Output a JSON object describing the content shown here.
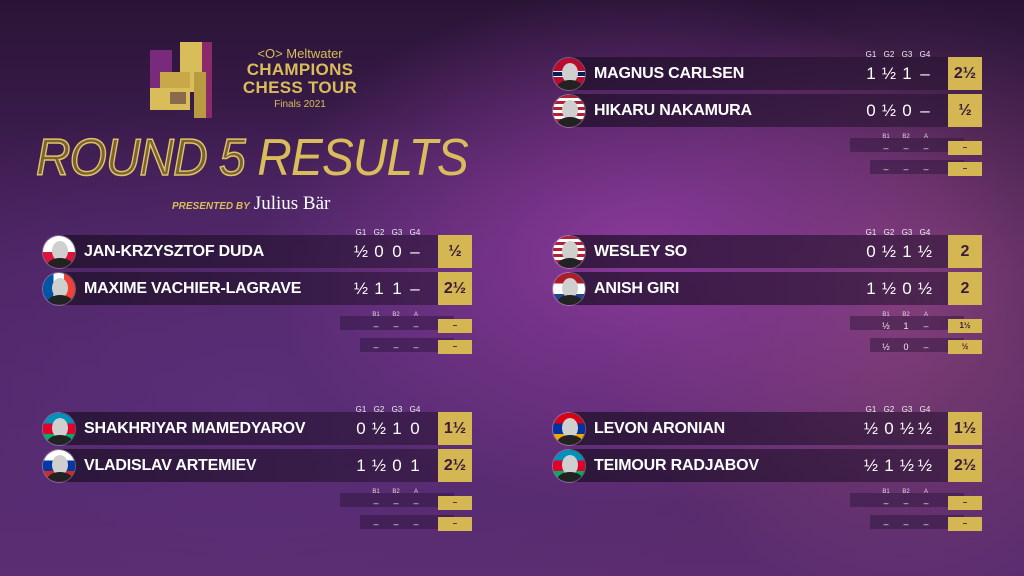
{
  "brand": {
    "sponsor": "Meltwater",
    "line1": "CHAMPIONS",
    "line2": "CHESS TOUR",
    "edition": "Finals 2021"
  },
  "title": {
    "outlined": "ROUND 5",
    "solid": "RESULTS"
  },
  "presented": {
    "label": "PRESENTED BY",
    "sponsor": "Julius Bär"
  },
  "colors": {
    "gold": "#d4b653",
    "background": "#4a2360"
  },
  "game_headers": [
    "G1",
    "G2",
    "G3",
    "G4"
  ],
  "tiebreak_headers": [
    "B1",
    "B2",
    "A"
  ],
  "matches": [
    {
      "players": [
        {
          "name": "MAGNUS CARLSEN",
          "flag": "norway",
          "games": [
            "1",
            "½",
            "1",
            "–"
          ],
          "total": "2½",
          "tiebreaks": [
            "–",
            "–",
            "–"
          ],
          "tb_total": "–"
        },
        {
          "name": "HIKARU NAKAMURA",
          "flag": "usa",
          "games": [
            "0",
            "½",
            "0",
            "–"
          ],
          "total": "½",
          "tiebreaks": [
            "–",
            "–",
            "–"
          ],
          "tb_total": "–"
        }
      ]
    },
    {
      "players": [
        {
          "name": "JAN-KRZYSZTOF DUDA",
          "flag": "poland",
          "games": [
            "½",
            "0",
            "0",
            "–"
          ],
          "total": "½",
          "tiebreaks": [
            "–",
            "–",
            "–"
          ],
          "tb_total": "–"
        },
        {
          "name": "MAXIME VACHIER-LAGRAVE",
          "flag": "france",
          "games": [
            "½",
            "1",
            "1",
            "–"
          ],
          "total": "2½",
          "tiebreaks": [
            "–",
            "–",
            "–"
          ],
          "tb_total": "–"
        }
      ]
    },
    {
      "players": [
        {
          "name": "WESLEY SO",
          "flag": "usa",
          "games": [
            "0",
            "½",
            "1",
            "½"
          ],
          "total": "2",
          "tiebreaks": [
            "½",
            "1",
            "–"
          ],
          "tb_total": "1½"
        },
        {
          "name": "ANISH GIRI",
          "flag": "netherlands",
          "games": [
            "1",
            "½",
            "0",
            "½"
          ],
          "total": "2",
          "tiebreaks": [
            "½",
            "0",
            "–"
          ],
          "tb_total": "½"
        }
      ]
    },
    {
      "players": [
        {
          "name": "SHAKHRIYAR MAMEDYAROV",
          "flag": "azerbaijan",
          "games": [
            "0",
            "½",
            "1",
            "0"
          ],
          "total": "1½",
          "tiebreaks": [
            "–",
            "–",
            "–"
          ],
          "tb_total": "–"
        },
        {
          "name": "VLADISLAV ARTEMIEV",
          "flag": "russia",
          "games": [
            "1",
            "½",
            "0",
            "1"
          ],
          "total": "2½",
          "tiebreaks": [
            "–",
            "–",
            "–"
          ],
          "tb_total": "–"
        }
      ]
    },
    {
      "players": [
        {
          "name": "LEVON ARONIAN",
          "flag": "armenia",
          "games": [
            "½",
            "0",
            "½",
            "½"
          ],
          "total": "1½",
          "tiebreaks": [
            "–",
            "–",
            "–"
          ],
          "tb_total": "–"
        },
        {
          "name": "TEIMOUR RADJABOV",
          "flag": "azerbaijan",
          "games": [
            "½",
            "1",
            "½",
            "½"
          ],
          "total": "2½",
          "tiebreaks": [
            "–",
            "–",
            "–"
          ],
          "tb_total": "–"
        }
      ]
    }
  ]
}
